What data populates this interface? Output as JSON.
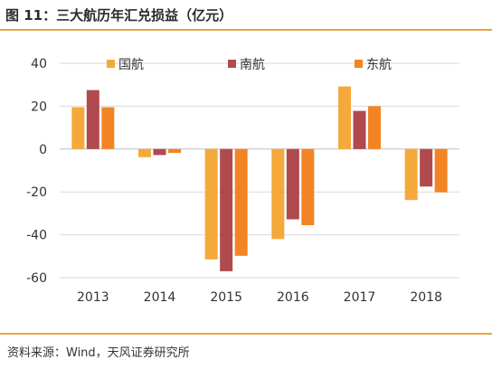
{
  "header": {
    "title": "图 11：三大航历年汇兑损益（亿元）"
  },
  "footer": {
    "source": "资料来源：Wind，天风证券研究所"
  },
  "colors": {
    "series": [
      "#F5A93A",
      "#B04A4E",
      "#F28423"
    ],
    "grid": "#d9d9d9",
    "accent": "#E8A33D"
  },
  "chart_data": {
    "type": "bar",
    "title": "",
    "xlabel": "",
    "ylabel": "",
    "categories": [
      "2013",
      "2014",
      "2015",
      "2016",
      "2017",
      "2018"
    ],
    "ylim": [
      -60,
      40
    ],
    "yticks": [
      40,
      20,
      0,
      -20,
      -40,
      -60
    ],
    "grid": true,
    "legend_position": "top",
    "series": [
      {
        "name": "国航",
        "values": [
          19.5,
          -3.8,
          -51.5,
          -42.0,
          29.2,
          -23.8
        ]
      },
      {
        "name": "南航",
        "values": [
          27.5,
          -2.8,
          -57.0,
          -32.8,
          17.8,
          -17.5
        ]
      },
      {
        "name": "东航",
        "values": [
          19.5,
          -1.8,
          -49.8,
          -35.5,
          20.0,
          -20.2
        ]
      }
    ]
  }
}
